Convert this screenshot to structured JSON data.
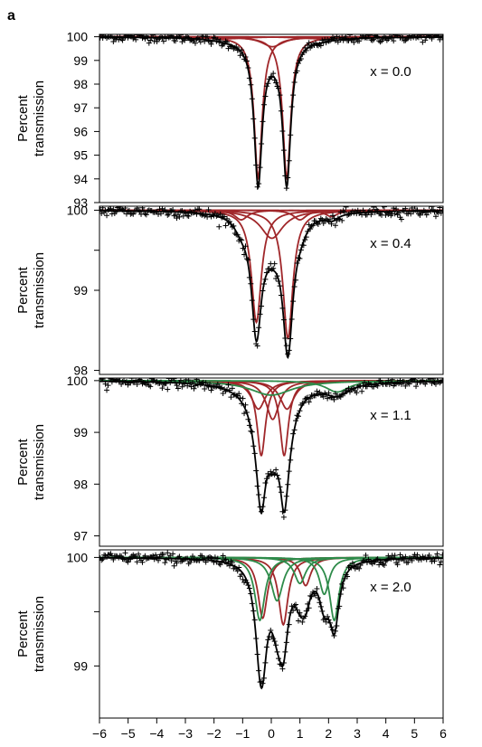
{
  "figure_letter": "a",
  "chart_data": {
    "type": "scatter",
    "xlim": [
      -6,
      6
    ],
    "xticks": [
      -6,
      -5,
      -4,
      -3,
      -2,
      -1,
      0,
      1,
      2,
      3,
      4,
      5,
      6
    ],
    "xlabel": "",
    "colors": {
      "data": "#000000",
      "fit": "#000000",
      "red_component": "#a0272a",
      "green_component": "#2e8b4a"
    },
    "panels": [
      {
        "label": "x = 0.0",
        "ylabel": "Percent transmission",
        "ylim": [
          93,
          100.1
        ],
        "yticks": [
          100,
          99,
          98,
          97,
          96,
          95,
          94,
          93
        ],
        "ytick_labels": [
          "100",
          "99",
          "98",
          "97",
          "96",
          "95",
          "94",
          "93"
        ],
        "noise": 0.09,
        "components": [
          {
            "color": "red",
            "center": -0.46,
            "width": 0.34,
            "depth": 5.95
          },
          {
            "color": "red",
            "center": 0.54,
            "width": 0.34,
            "depth": 5.95
          },
          {
            "color": "red",
            "center": 0.04,
            "width": 0.9,
            "depth": 0.42
          },
          {
            "color": "red",
            "center": -1.5,
            "width": 1.6,
            "depth": 0.08
          },
          {
            "color": "red",
            "center": 1.6,
            "width": 1.6,
            "depth": 0.08
          }
        ]
      },
      {
        "label": "x = 0.4",
        "ylabel": "Percent transmission",
        "ylim": [
          97.95,
          100.05
        ],
        "yticks": [
          100,
          99.5,
          99,
          98
        ],
        "ytick_labels": [
          "100",
          "",
          "99",
          "98"
        ],
        "noise": 0.035,
        "components": [
          {
            "color": "red",
            "center": -0.52,
            "width": 0.42,
            "depth": 1.4
          },
          {
            "color": "red",
            "center": 0.58,
            "width": 0.42,
            "depth": 1.6
          },
          {
            "color": "red",
            "center": 0.02,
            "width": 0.95,
            "depth": 0.35
          },
          {
            "color": "red",
            "center": -1.05,
            "width": 0.55,
            "depth": 0.12
          },
          {
            "color": "red",
            "center": 1.0,
            "width": 0.55,
            "depth": 0.12
          },
          {
            "color": "red",
            "center": 2.1,
            "width": 0.55,
            "depth": 0.08
          }
        ]
      },
      {
        "label": "x = 1.1",
        "ylabel": "Percent transmission",
        "ylim": [
          96.8,
          100.05
        ],
        "yticks": [
          100,
          99,
          98,
          97
        ],
        "ytick_labels": [
          "100",
          "99",
          "98",
          "97"
        ],
        "noise": 0.05,
        "components": [
          {
            "color": "red",
            "center": -0.35,
            "width": 0.36,
            "depth": 1.45
          },
          {
            "color": "red",
            "center": 0.45,
            "width": 0.36,
            "depth": 1.45
          },
          {
            "color": "red",
            "center": 0.05,
            "width": 0.55,
            "depth": 0.75
          },
          {
            "color": "red",
            "center": -0.45,
            "width": 0.6,
            "depth": 0.55
          },
          {
            "color": "red",
            "center": 0.55,
            "width": 0.6,
            "depth": 0.55
          },
          {
            "color": "green",
            "center": 0.0,
            "width": 1.8,
            "depth": 0.28
          },
          {
            "color": "green",
            "center": 2.3,
            "width": 1.0,
            "depth": 0.22
          }
        ]
      },
      {
        "label": "x = 2.0",
        "ylabel": "Percent transmission",
        "ylim": [
          98.52,
          100.07
        ],
        "yticks": [
          100,
          99.5,
          99
        ],
        "ytick_labels": [
          "100",
          "",
          "99"
        ],
        "noise": 0.025,
        "components": [
          {
            "color": "red",
            "center": -0.3,
            "width": 0.4,
            "depth": 0.56
          },
          {
            "color": "red",
            "center": 0.42,
            "width": 0.4,
            "depth": 0.62
          },
          {
            "color": "red",
            "center": 1.2,
            "width": 0.42,
            "depth": 0.26
          },
          {
            "color": "green",
            "center": -0.4,
            "width": 0.42,
            "depth": 0.58
          },
          {
            "color": "green",
            "center": 0.2,
            "width": 0.5,
            "depth": 0.4
          },
          {
            "color": "green",
            "center": 1.0,
            "width": 0.48,
            "depth": 0.24
          },
          {
            "color": "green",
            "center": 1.85,
            "width": 0.42,
            "depth": 0.34
          },
          {
            "color": "green",
            "center": 2.2,
            "width": 0.4,
            "depth": 0.58
          }
        ]
      }
    ]
  }
}
